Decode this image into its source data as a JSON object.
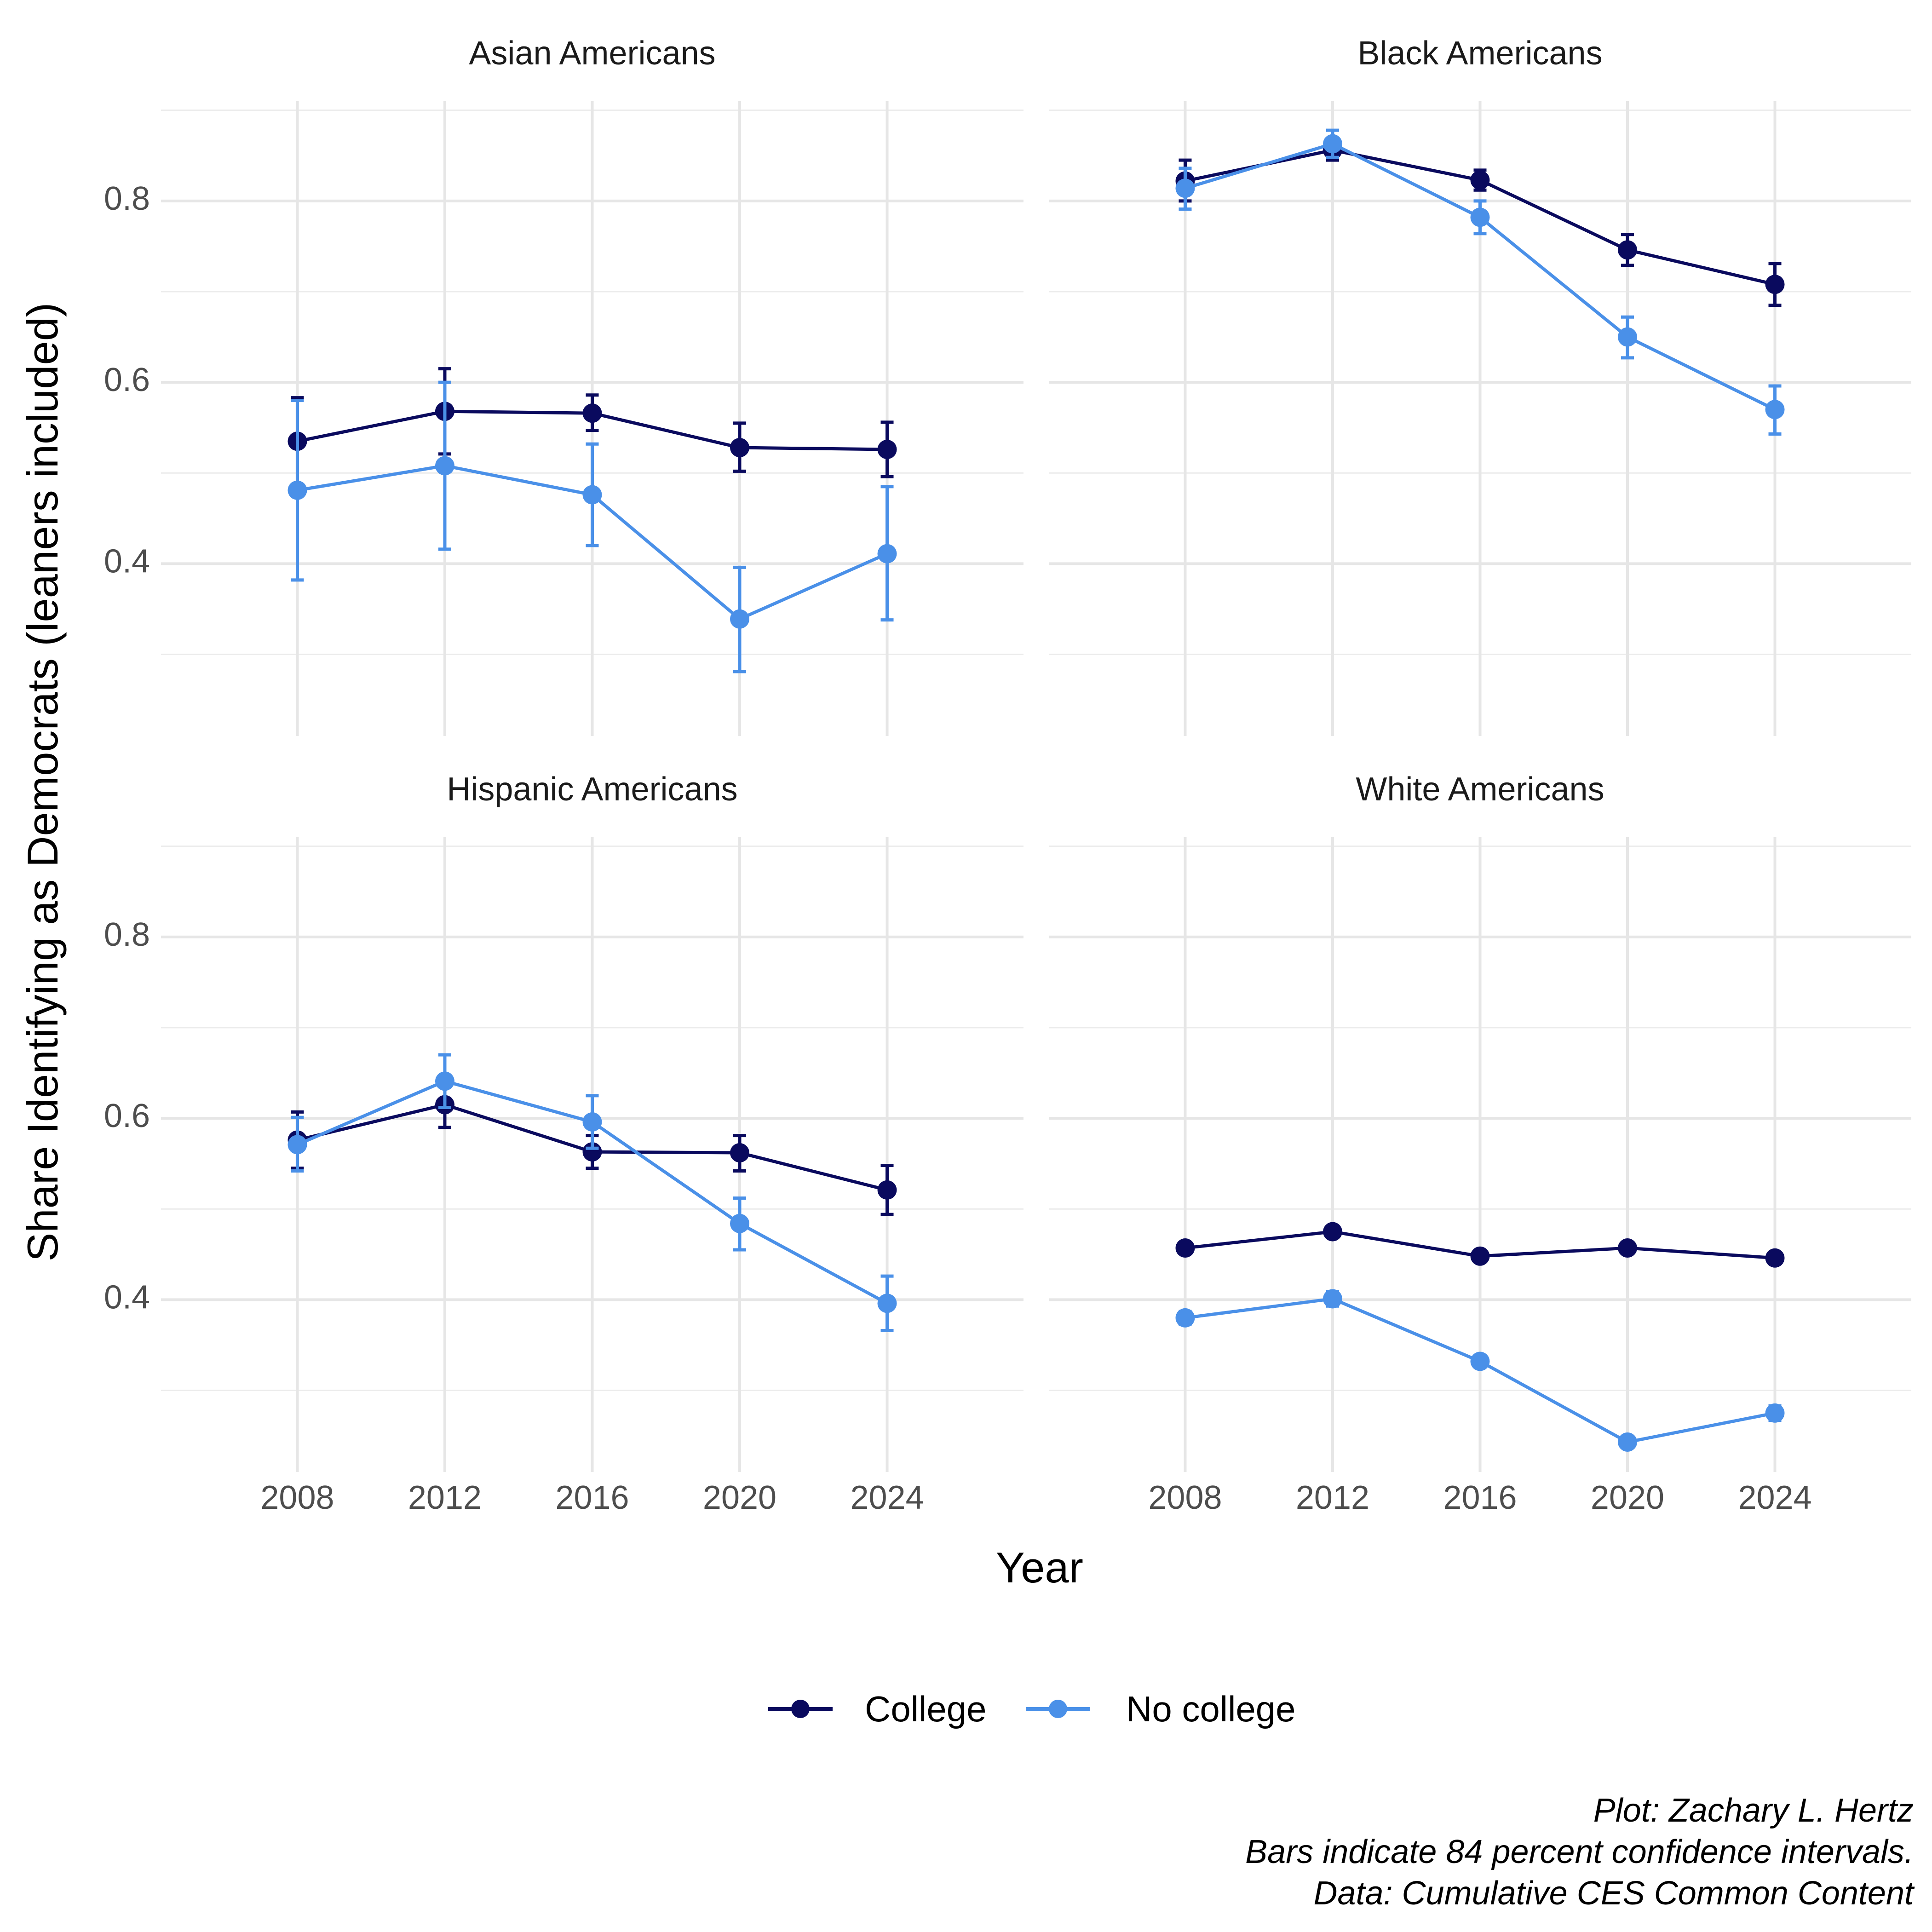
{
  "chart_data": {
    "type": "line",
    "xlabel": "Year",
    "ylabel": "Share Identifying as Democrats (leaners included)",
    "x": [
      2008,
      2012,
      2016,
      2020,
      2024
    ],
    "x_ticks": [
      "2008",
      "2012",
      "2016",
      "2020",
      "2024"
    ],
    "y_ticks": [
      "0.4",
      "0.6",
      "0.8"
    ],
    "y_tick_values": [
      0.4,
      0.6,
      0.8
    ],
    "xlim": [
      2004.3,
      2027.7
    ],
    "ylim": [
      0.21,
      0.91
    ],
    "grid": true,
    "legend_position": "bottom",
    "legend": [
      {
        "name": "College",
        "color": "#0a0a5e"
      },
      {
        "name": "No college",
        "color": "#4a90e8"
      }
    ],
    "caption": [
      "Plot: Zachary L. Hertz",
      "Bars indicate 84 percent confidence intervals.",
      "Data: Cumulative CES Common Content"
    ],
    "panels": [
      {
        "title": "Asian Americans",
        "series": [
          {
            "name": "College",
            "values": [
              0.535,
              0.568,
              0.566,
              0.528,
              0.526
            ],
            "lower": [
              0.487,
              0.521,
              0.547,
              0.502,
              0.496
            ],
            "upper": [
              0.583,
              0.615,
              0.586,
              0.555,
              0.556
            ]
          },
          {
            "name": "No college",
            "values": [
              0.481,
              0.508,
              0.476,
              0.339,
              0.411
            ],
            "lower": [
              0.382,
              0.416,
              0.42,
              0.281,
              0.338
            ],
            "upper": [
              0.58,
              0.6,
              0.532,
              0.396,
              0.485
            ]
          }
        ]
      },
      {
        "title": "Black Americans",
        "series": [
          {
            "name": "College",
            "values": [
              0.822,
              0.856,
              0.823,
              0.746,
              0.708
            ],
            "lower": [
              0.8,
              0.845,
              0.812,
              0.729,
              0.685
            ],
            "upper": [
              0.845,
              0.866,
              0.834,
              0.763,
              0.731
            ]
          },
          {
            "name": "No college",
            "values": [
              0.814,
              0.863,
              0.782,
              0.65,
              0.57
            ],
            "lower": [
              0.791,
              0.848,
              0.764,
              0.627,
              0.543
            ],
            "upper": [
              0.836,
              0.878,
              0.8,
              0.672,
              0.596
            ]
          }
        ]
      },
      {
        "title": "Hispanic Americans",
        "series": [
          {
            "name": "College",
            "values": [
              0.576,
              0.615,
              0.563,
              0.562,
              0.521
            ],
            "lower": [
              0.545,
              0.59,
              0.545,
              0.542,
              0.494
            ],
            "upper": [
              0.607,
              0.64,
              0.581,
              0.581,
              0.548
            ]
          },
          {
            "name": "No college",
            "values": [
              0.571,
              0.641,
              0.596,
              0.484,
              0.396
            ],
            "lower": [
              0.542,
              0.612,
              0.567,
              0.455,
              0.366
            ],
            "upper": [
              0.601,
              0.67,
              0.625,
              0.512,
              0.426
            ]
          }
        ]
      },
      {
        "title": "White Americans",
        "series": [
          {
            "name": "College",
            "values": [
              0.457,
              0.475,
              0.448,
              0.457,
              0.446
            ],
            "lower": [
              0.453,
              0.469,
              0.444,
              0.453,
              0.442
            ],
            "upper": [
              0.461,
              0.481,
              0.452,
              0.462,
              0.45
            ]
          },
          {
            "name": "No college",
            "values": [
              0.38,
              0.401,
              0.332,
              0.243,
              0.275
            ],
            "lower": [
              0.373,
              0.393,
              0.326,
              0.237,
              0.267
            ],
            "upper": [
              0.387,
              0.409,
              0.338,
              0.249,
              0.283
            ]
          }
        ]
      }
    ]
  }
}
